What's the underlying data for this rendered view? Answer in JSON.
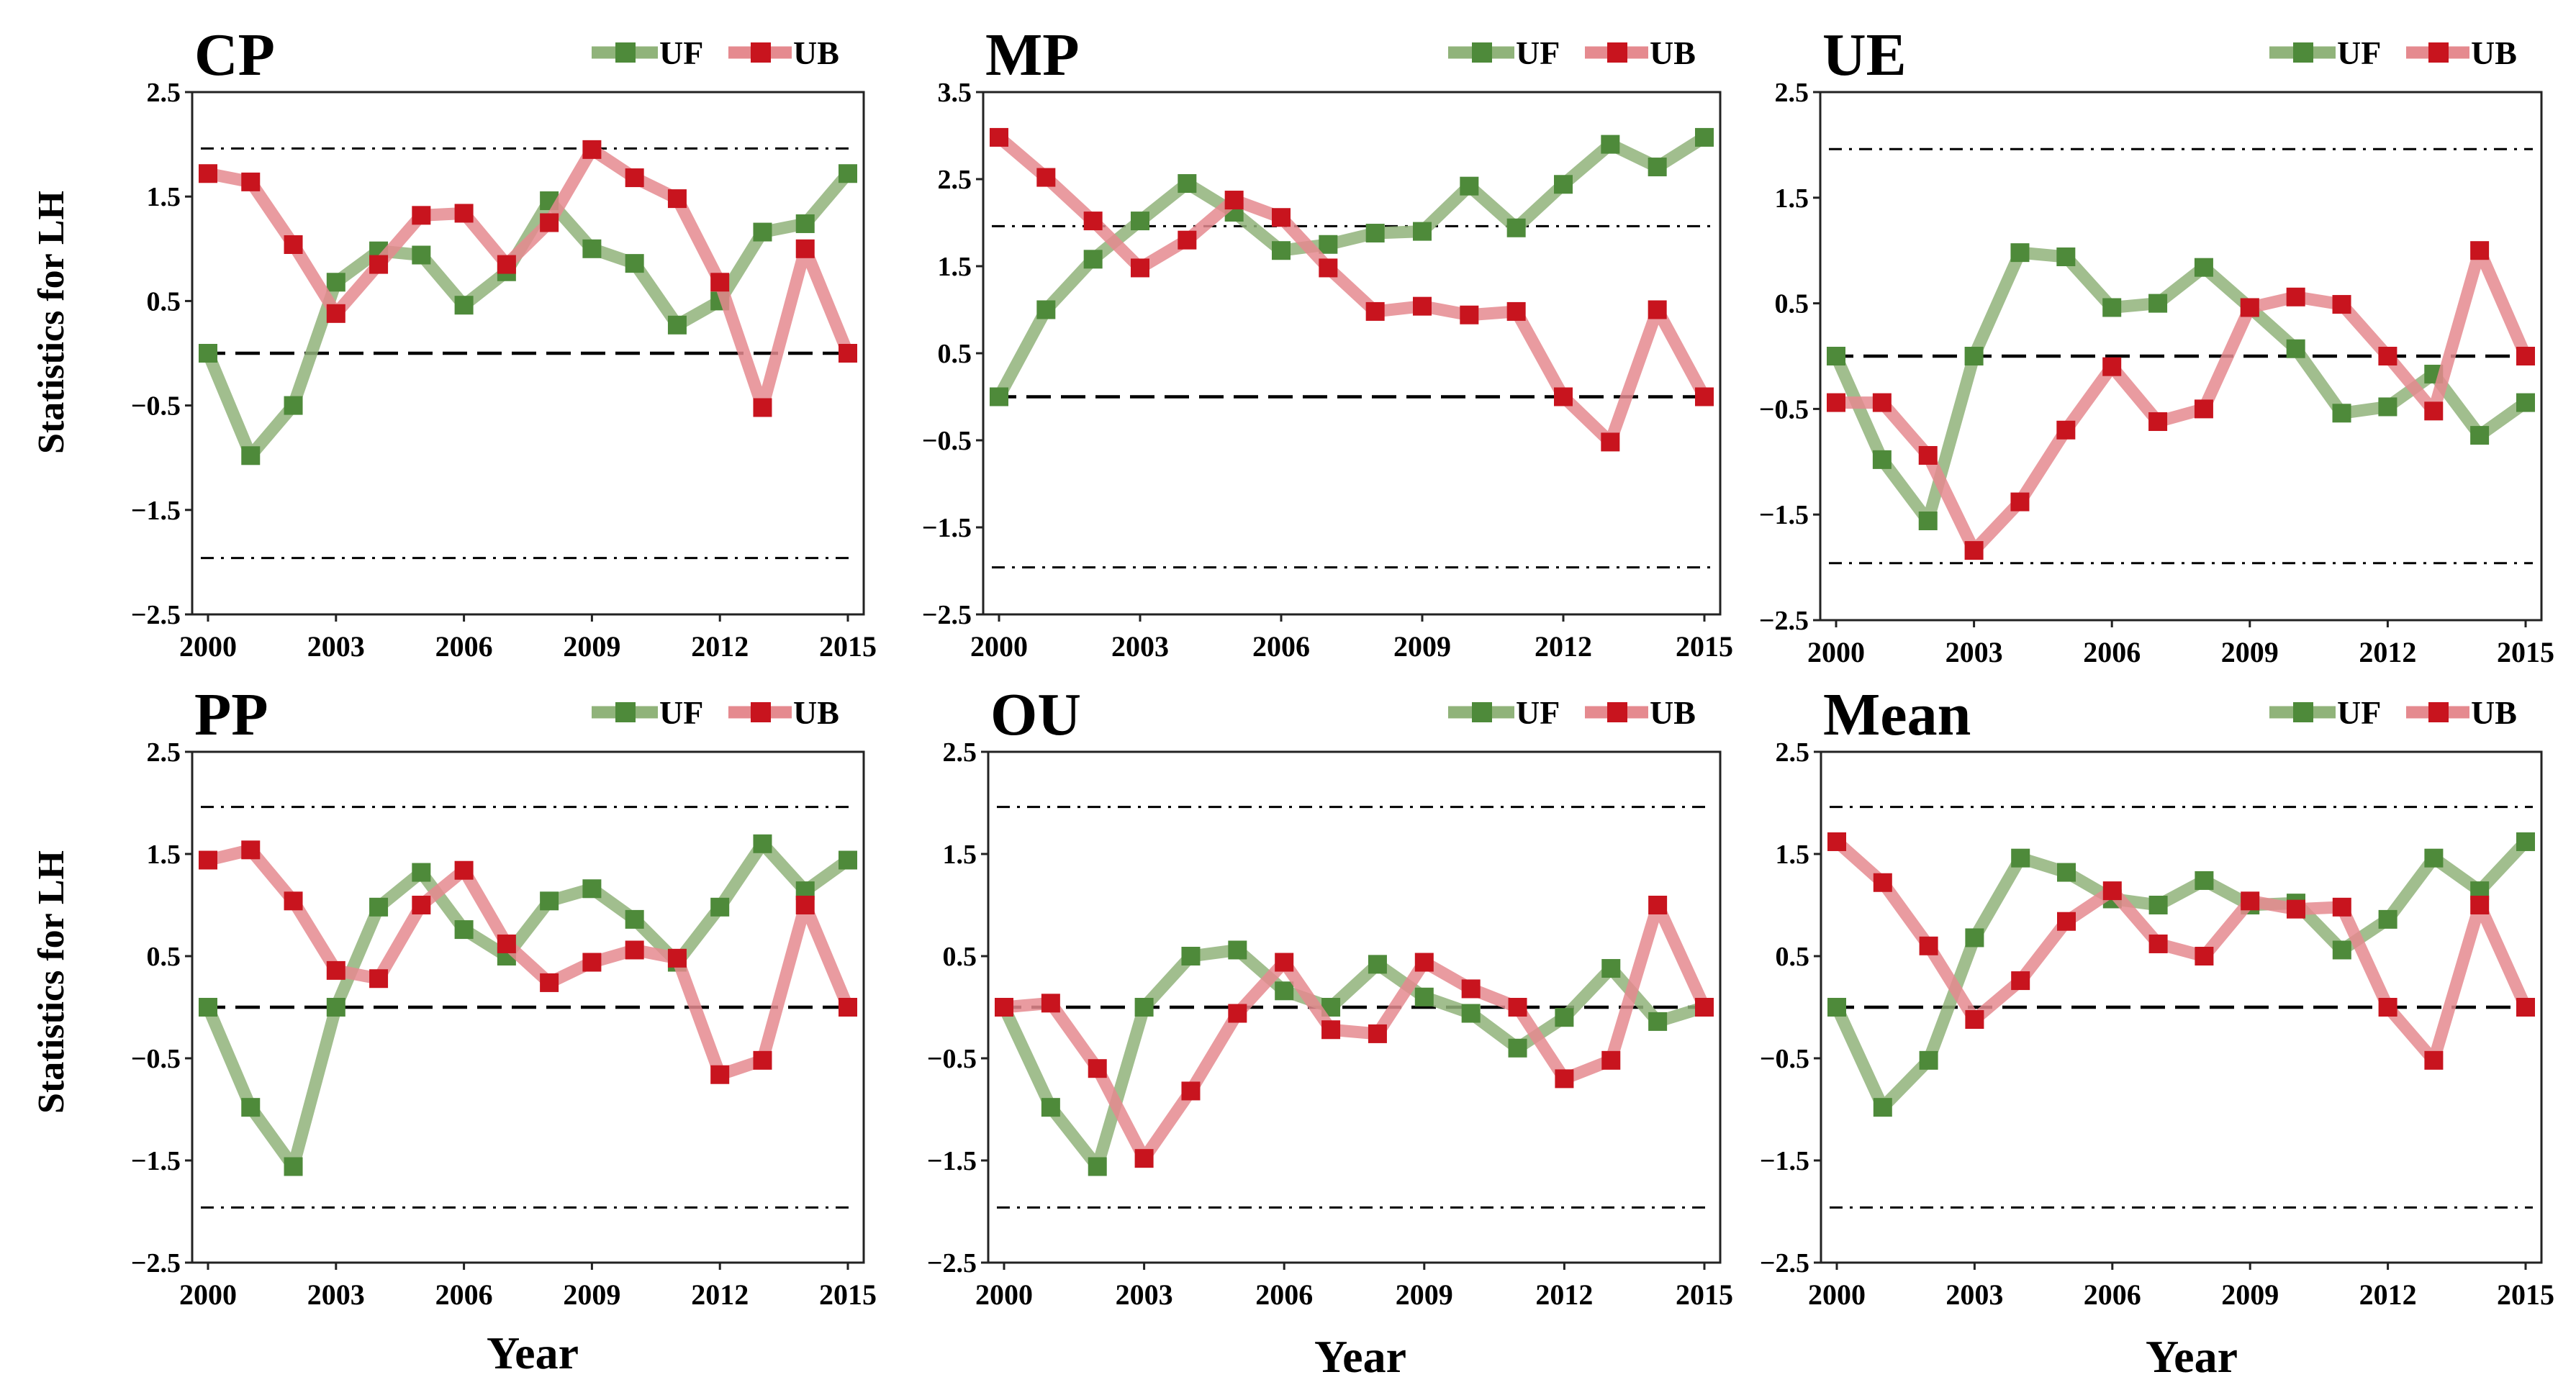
{
  "figure": {
    "ylabel": "Statistics for LH",
    "xlabel": "Year",
    "legend_uf": "UF",
    "legend_ub": "UB",
    "colors": {
      "uf": "#90b37a",
      "ub": "#e58a8f",
      "uf_marker": "#4e8a3a",
      "ub_marker": "#c8141e"
    }
  },
  "chart_data": [
    {
      "type": "line",
      "title": "CP",
      "x": [
        2000,
        2001,
        2002,
        2003,
        2004,
        2005,
        2006,
        2007,
        2008,
        2009,
        2010,
        2011,
        2012,
        2013,
        2014,
        2015
      ],
      "xticks": [
        "2000",
        "2003",
        "2006",
        "2009",
        "2012",
        "2015"
      ],
      "ylim": [
        -2.5,
        2.5
      ],
      "yticks": [
        "2.5",
        "1.5",
        "0.5",
        "−0.5",
        "−1.5",
        "−2.5"
      ],
      "critical": 1.96,
      "series": [
        {
          "name": "UF",
          "values": [
            0,
            -0.98,
            -0.5,
            0.68,
            0.98,
            0.94,
            0.46,
            0.78,
            1.46,
            1.0,
            0.86,
            0.27,
            0.5,
            1.16,
            1.24,
            1.72
          ]
        },
        {
          "name": "UB",
          "values": [
            1.72,
            1.64,
            1.04,
            0.38,
            0.85,
            1.32,
            1.34,
            0.85,
            1.25,
            1.95,
            1.68,
            1.48,
            0.68,
            -0.52,
            1.0,
            0
          ]
        }
      ]
    },
    {
      "type": "line",
      "title": "MP",
      "x": [
        2000,
        2001,
        2002,
        2003,
        2004,
        2005,
        2006,
        2007,
        2008,
        2009,
        2010,
        2011,
        2012,
        2013,
        2014,
        2015
      ],
      "xticks": [
        "2000",
        "2003",
        "2006",
        "2009",
        "2012",
        "2015"
      ],
      "ylim": [
        -2.5,
        3.5
      ],
      "yticks": [
        "3.5",
        "2.5",
        "1.5",
        "0.5",
        "−0.5",
        "−1.5",
        "−2.5"
      ],
      "critical": 1.96,
      "series": [
        {
          "name": "UF",
          "values": [
            0,
            1.0,
            1.58,
            2.02,
            2.45,
            2.12,
            1.68,
            1.75,
            1.88,
            1.9,
            2.42,
            1.94,
            2.44,
            2.9,
            2.64,
            2.98
          ]
        },
        {
          "name": "UB",
          "values": [
            2.98,
            2.52,
            2.02,
            1.48,
            1.8,
            2.26,
            2.06,
            1.48,
            0.98,
            1.04,
            0.94,
            0.98,
            0.0,
            -0.52,
            1.0,
            0
          ]
        }
      ]
    },
    {
      "type": "line",
      "title": "UE",
      "x": [
        2000,
        2001,
        2002,
        2003,
        2004,
        2005,
        2006,
        2007,
        2008,
        2009,
        2010,
        2011,
        2012,
        2013,
        2014,
        2015
      ],
      "xticks": [
        "2000",
        "2003",
        "2006",
        "2009",
        "2012",
        "2015"
      ],
      "ylim": [
        -2.5,
        2.5
      ],
      "yticks": [
        "2.5",
        "1.5",
        "0.5",
        "−0.5",
        "−1.5",
        "−2.5"
      ],
      "critical": 1.96,
      "series": [
        {
          "name": "UF",
          "values": [
            0,
            -0.98,
            -1.56,
            0,
            0.98,
            0.94,
            0.46,
            0.5,
            0.84,
            0.46,
            0.07,
            -0.54,
            -0.48,
            -0.17,
            -0.75,
            -0.44
          ]
        },
        {
          "name": "UB",
          "values": [
            -0.44,
            -0.44,
            -0.94,
            -1.84,
            -1.38,
            -0.7,
            -0.1,
            -0.62,
            -0.5,
            0.46,
            0.56,
            0.49,
            0,
            -0.52,
            1.0,
            0
          ]
        }
      ]
    },
    {
      "type": "line",
      "title": "PP",
      "x": [
        2000,
        2001,
        2002,
        2003,
        2004,
        2005,
        2006,
        2007,
        2008,
        2009,
        2010,
        2011,
        2012,
        2013,
        2014,
        2015
      ],
      "xticks": [
        "2000",
        "2003",
        "2006",
        "2009",
        "2012",
        "2015"
      ],
      "ylim": [
        -2.5,
        2.5
      ],
      "yticks": [
        "2.5",
        "1.5",
        "0.5",
        "−0.5",
        "−1.5",
        "−2.5"
      ],
      "critical": 1.96,
      "series": [
        {
          "name": "UF",
          "values": [
            0,
            -0.98,
            -1.56,
            0,
            0.98,
            1.32,
            0.76,
            0.5,
            1.04,
            1.16,
            0.86,
            0.44,
            0.98,
            1.6,
            1.14,
            1.44
          ]
        },
        {
          "name": "UB",
          "values": [
            1.44,
            1.54,
            1.04,
            0.36,
            0.28,
            1.0,
            1.34,
            0.62,
            0.24,
            0.44,
            0.56,
            0.48,
            -0.66,
            -0.52,
            1.0,
            0
          ]
        }
      ]
    },
    {
      "type": "line",
      "title": "OU",
      "x": [
        2000,
        2001,
        2002,
        2003,
        2004,
        2005,
        2006,
        2007,
        2008,
        2009,
        2010,
        2011,
        2012,
        2013,
        2014,
        2015
      ],
      "xticks": [
        "2000",
        "2003",
        "2006",
        "2009",
        "2012",
        "2015"
      ],
      "ylim": [
        -2.5,
        2.5
      ],
      "yticks": [
        "2.5",
        "1.5",
        "0.5",
        "−0.5",
        "−1.5",
        "−2.5"
      ],
      "critical": 1.96,
      "series": [
        {
          "name": "UF",
          "values": [
            0,
            -0.98,
            -1.56,
            0,
            0.5,
            0.56,
            0.16,
            0,
            0.42,
            0.1,
            -0.06,
            -0.4,
            -0.1,
            0.38,
            -0.14,
            0
          ]
        },
        {
          "name": "UB",
          "values": [
            0,
            0.04,
            -0.6,
            -1.48,
            -0.82,
            -0.06,
            0.44,
            -0.22,
            -0.26,
            0.44,
            0.18,
            0,
            -0.7,
            -0.52,
            1.0,
            0
          ]
        }
      ]
    },
    {
      "type": "line",
      "title": "Mean",
      "x": [
        2000,
        2001,
        2002,
        2003,
        2004,
        2005,
        2006,
        2007,
        2008,
        2009,
        2010,
        2011,
        2012,
        2013,
        2014,
        2015
      ],
      "xticks": [
        "2000",
        "2003",
        "2006",
        "2009",
        "2012",
        "2015"
      ],
      "ylim": [
        -2.5,
        2.5
      ],
      "yticks": [
        "2.5",
        "1.5",
        "0.5",
        "−0.5",
        "−1.5",
        "−2.5"
      ],
      "critical": 1.96,
      "series": [
        {
          "name": "UF",
          "values": [
            0,
            -0.98,
            -0.52,
            0.68,
            1.46,
            1.32,
            1.06,
            1.0,
            1.24,
            1.0,
            1.02,
            0.56,
            0.86,
            1.46,
            1.14,
            1.62
          ]
        },
        {
          "name": "UB",
          "values": [
            1.62,
            1.22,
            0.6,
            -0.12,
            0.26,
            0.84,
            1.14,
            0.62,
            0.5,
            1.04,
            0.96,
            0.98,
            0,
            -0.52,
            1.0,
            0
          ]
        }
      ]
    }
  ]
}
